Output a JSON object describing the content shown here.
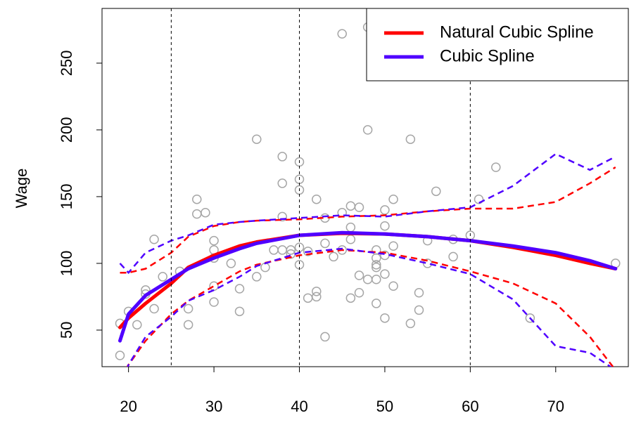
{
  "chart_data": {
    "type": "line",
    "y_label": "Wage",
    "xlim": [
      16.9,
      78.5
    ],
    "ylim": [
      22.6,
      291
    ],
    "xticks": [
      20,
      30,
      40,
      50,
      60,
      70
    ],
    "yticks": [
      50,
      100,
      150,
      200,
      250
    ],
    "knots": [
      25,
      40,
      60
    ],
    "legend": "top-right",
    "points": {
      "color": "#a6a6a6",
      "x": [
        19,
        19,
        20,
        21,
        22,
        22,
        23,
        23,
        24,
        26,
        27,
        27,
        28,
        28,
        29,
        30,
        30,
        30,
        30,
        30,
        32,
        33,
        33,
        35,
        35,
        36,
        37,
        38,
        38,
        38,
        38,
        39,
        39,
        40,
        40,
        40,
        40,
        40,
        41,
        41,
        42,
        42,
        42,
        43,
        43,
        43,
        44,
        45,
        45,
        45,
        46,
        46,
        46,
        46,
        47,
        47,
        47,
        48,
        48,
        48,
        49,
        49,
        49,
        49,
        49,
        49,
        50,
        50,
        50,
        50,
        50,
        51,
        51,
        51,
        51,
        53,
        53,
        54,
        54,
        55,
        55,
        56,
        58,
        58,
        60,
        61,
        63,
        67,
        77
      ],
      "y": [
        31,
        55,
        64,
        54,
        80,
        77,
        66,
        118,
        90,
        94,
        66,
        54,
        148,
        137,
        138,
        117,
        110,
        104,
        83,
        71,
        100,
        81,
        64,
        193,
        90,
        97,
        110,
        180,
        160,
        135,
        110,
        110,
        107,
        176,
        163,
        155,
        112,
        99,
        109,
        74,
        148,
        79,
        75,
        134,
        115,
        45,
        105,
        272,
        110,
        138,
        143,
        127,
        118,
        74,
        142,
        91,
        78,
        277,
        200,
        88,
        110,
        104,
        99,
        97,
        88,
        70,
        140,
        128,
        106,
        92,
        59,
        282,
        148,
        113,
        83,
        193,
        55,
        78,
        65,
        117,
        100,
        154,
        118,
        105,
        121,
        148,
        172,
        59,
        100
      ]
    },
    "x": [
      19,
      20,
      22,
      25,
      27,
      30,
      33,
      35,
      40,
      45,
      50,
      55,
      60,
      65,
      70,
      74,
      77
    ],
    "series": [
      {
        "name": "Natural Cubic Spline",
        "color": "#ff0000",
        "values": [
          52,
          59,
          70,
          85,
          97,
          106,
          113,
          116,
          121,
          122.5,
          122,
          120,
          117,
          112,
          106,
          100,
          96
        ],
        "upper": [
          93,
          93,
          96,
          108,
          120,
          128,
          131,
          132,
          133,
          135,
          136,
          139,
          141,
          141,
          146,
          160,
          172
        ],
        "lower": [
          14,
          24,
          42,
          62,
          72,
          83,
          94,
          99,
          106,
          110,
          108,
          102,
          94,
          85,
          70,
          45,
          20
        ]
      },
      {
        "name": "Cubic Spline",
        "color": "#5000ff",
        "values": [
          42,
          62,
          76,
          88,
          96,
          104,
          111,
          115,
          121,
          123,
          122,
          120,
          117,
          113,
          108,
          102,
          96
        ],
        "upper": [
          100,
          93,
          108,
          117,
          121,
          129,
          131,
          132,
          134,
          136,
          135,
          139,
          142,
          158,
          182,
          170,
          180
        ],
        "lower": [
          5,
          24,
          45,
          60,
          72,
          80,
          90,
          98,
          108,
          111,
          107,
          100,
          92,
          73,
          38,
          33,
          20
        ]
      }
    ]
  }
}
